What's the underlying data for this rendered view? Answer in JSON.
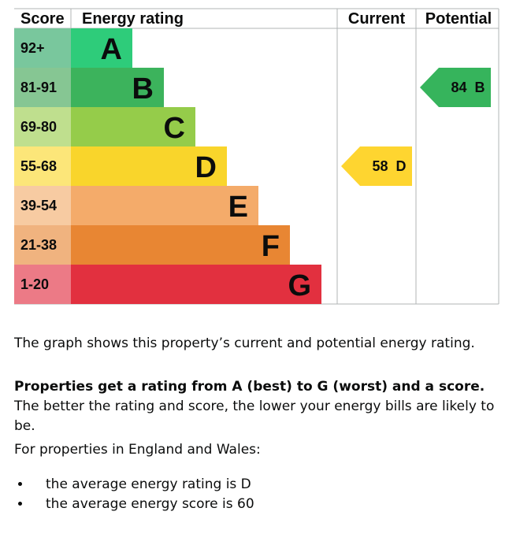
{
  "chart_data": {
    "type": "bar",
    "headers": {
      "score": "Score",
      "rating": "Energy rating",
      "current": "Current",
      "potential": "Potential"
    },
    "bands": [
      {
        "letter": "A",
        "range": "92+",
        "bar_color": "#2ecc7a",
        "cell_color": "#79c79d"
      },
      {
        "letter": "B",
        "range": "81-91",
        "bar_color": "#3cb35c",
        "cell_color": "#86c693"
      },
      {
        "letter": "C",
        "range": "69-80",
        "bar_color": "#95cc4a",
        "cell_color": "#bfdf8e"
      },
      {
        "letter": "D",
        "range": "55-68",
        "bar_color": "#f9d52b",
        "cell_color": "#fce679"
      },
      {
        "letter": "E",
        "range": "39-54",
        "bar_color": "#f4ab6a",
        "cell_color": "#f7cba2"
      },
      {
        "letter": "F",
        "range": "21-38",
        "bar_color": "#e88633",
        "cell_color": "#f0b37f"
      },
      {
        "letter": "G",
        "range": "1-20",
        "bar_color": "#e2303f",
        "cell_color": "#ec7a86"
      }
    ],
    "current": {
      "score": 58,
      "letter": "D",
      "label": "58  D",
      "color": "#fed530"
    },
    "potential": {
      "score": 84,
      "letter": "B",
      "label": "84  B",
      "color": "#36b45c"
    }
  },
  "text": {
    "p1": "The graph shows this property’s current and potential energy rating.",
    "p2_strong": "Properties get a rating from A (best) to G (worst) and a score.",
    "p2_rest": " The better the rating and score, the lower your energy bills are likely to be.",
    "p3": "For properties in England and Wales:",
    "bullets": [
      "the average energy rating is D",
      "the average energy score is 60"
    ]
  }
}
